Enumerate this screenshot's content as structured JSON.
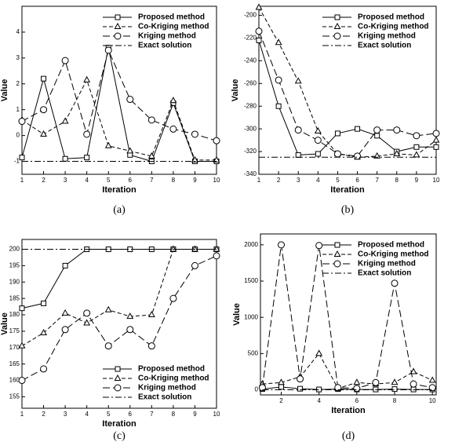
{
  "chart_data": [
    {
      "type": "line",
      "caption": "(a)",
      "x_label": "Iteration",
      "y_label": "Value",
      "legend": "upper right",
      "x": [
        1,
        2,
        3,
        4,
        5,
        6,
        7,
        8,
        9,
        10
      ],
      "xlim": [
        1,
        10
      ],
      "xticks": [
        1,
        2,
        3,
        4,
        5,
        6,
        7,
        8,
        9,
        10
      ],
      "ylim": [
        -1.5,
        5
      ],
      "yticks": [
        -1,
        0,
        1,
        2,
        3,
        4
      ],
      "series": [
        {
          "name": "Proposed method",
          "color": "#000000",
          "dash": "solid",
          "marker": "square",
          "values": [
            -0.85,
            2.2,
            -0.9,
            -0.85,
            3.4,
            -0.75,
            -1.0,
            1.25,
            -1.0,
            -1.0
          ]
        },
        {
          "name": "Co-Kriging method",
          "color": "#000000",
          "dash": "dashed",
          "marker": "triangle",
          "values": [
            0.6,
            0.05,
            0.55,
            2.15,
            -0.4,
            -0.6,
            -0.8,
            1.35,
            -0.95,
            -0.95
          ]
        },
        {
          "name": "Kriging method",
          "color": "#000000",
          "dash": "longdash",
          "marker": "circle",
          "values": [
            0.55,
            1.0,
            2.9,
            0.05,
            3.3,
            1.4,
            0.6,
            0.25,
            0.05,
            -0.2
          ]
        },
        {
          "name": "Exact solution",
          "color": "#000000",
          "dash": "dashdot",
          "marker": "none",
          "values": [
            -1,
            -1,
            -1,
            -1,
            -1,
            -1,
            -1,
            -1,
            -1,
            -1
          ]
        }
      ]
    },
    {
      "type": "line",
      "caption": "(b)",
      "x_label": "Iteration",
      "y_label": "Value",
      "legend": "upper right",
      "x": [
        1,
        2,
        3,
        4,
        5,
        6,
        7,
        8,
        9,
        10
      ],
      "xlim": [
        1,
        10
      ],
      "xticks": [
        1,
        2,
        3,
        4,
        5,
        6,
        7,
        8,
        9,
        10
      ],
      "ylim": [
        -340,
        -192
      ],
      "yticks": [
        -340,
        -320,
        -300,
        -280,
        -260,
        -240,
        -220,
        -200
      ],
      "series": [
        {
          "name": "Proposed method",
          "color": "#000000",
          "dash": "solid",
          "marker": "square",
          "values": [
            -222,
            -280,
            -323,
            -322,
            -304,
            -300,
            -306,
            -320,
            -316,
            -316
          ]
        },
        {
          "name": "Co-Kriging method",
          "color": "#000000",
          "dash": "dashed",
          "marker": "triangle",
          "values": [
            -193,
            -224,
            -258,
            -302,
            -322,
            -325,
            -324,
            -322,
            -323,
            -310
          ]
        },
        {
          "name": "Kriging method",
          "color": "#000000",
          "dash": "longdash",
          "marker": "circle",
          "values": [
            -214,
            -257,
            -301,
            -310,
            -322,
            -324,
            -301,
            -301,
            -306,
            -304
          ]
        },
        {
          "name": "Exact solution",
          "color": "#000000",
          "dash": "dashdot",
          "marker": "none",
          "values": [
            -325,
            -325,
            -325,
            -325,
            -325,
            -325,
            -325,
            -325,
            -325,
            -325
          ]
        }
      ]
    },
    {
      "type": "line",
      "caption": "(c)",
      "x_label": "Iteration",
      "y_label": "Value",
      "legend": "lower right",
      "x": [
        1,
        2,
        3,
        4,
        5,
        6,
        7,
        8,
        9,
        10
      ],
      "xlim": [
        1,
        10
      ],
      "xticks": [
        1,
        2,
        3,
        4,
        5,
        6,
        7,
        8,
        9,
        10
      ],
      "ylim": [
        151.5,
        203
      ],
      "yticks": [
        155,
        160,
        165,
        170,
        175,
        180,
        185,
        190,
        195,
        200
      ],
      "series": [
        {
          "name": "Proposed method",
          "color": "#000000",
          "dash": "solid",
          "marker": "square",
          "values": [
            182,
            183.5,
            195,
            200,
            200,
            200,
            200,
            200,
            200,
            200
          ]
        },
        {
          "name": "Co-Kriging method",
          "color": "#000000",
          "dash": "dashed",
          "marker": "triangle",
          "values": [
            170.5,
            174.5,
            180.5,
            177.5,
            181.5,
            179.5,
            180,
            200,
            200,
            200
          ]
        },
        {
          "name": "Kriging method",
          "color": "#000000",
          "dash": "longdash",
          "marker": "circle",
          "values": [
            160,
            163.5,
            175.5,
            180.5,
            170.5,
            175.5,
            170.5,
            185,
            195,
            198
          ]
        },
        {
          "name": "Exact solution",
          "color": "#000000",
          "dash": "dashdot",
          "marker": "none",
          "values": [
            200,
            200,
            200,
            200,
            200,
            200,
            200,
            200,
            200,
            200
          ]
        }
      ]
    },
    {
      "type": "line",
      "caption": "(d)",
      "x_label": "Iteration",
      "y_label": "Value",
      "legend": "upper right",
      "x": [
        1,
        2,
        3,
        4,
        5,
        6,
        7,
        8,
        9,
        10
      ],
      "xlim": [
        0.9,
        10.2
      ],
      "xticks": [
        2,
        4,
        6,
        8,
        10
      ],
      "ylim": [
        -70,
        2150
      ],
      "yticks": [
        0,
        500,
        1000,
        1500,
        2000
      ],
      "series": [
        {
          "name": "Proposed method",
          "color": "#000000",
          "dash": "solid",
          "marker": "square",
          "values": [
            10,
            40,
            15,
            5,
            10,
            5,
            5,
            10,
            5,
            5
          ]
        },
        {
          "name": "Co-Kriging method",
          "color": "#000000",
          "dash": "dashed",
          "marker": "triangle",
          "values": [
            80,
            100,
            180,
            500,
            20,
            100,
            80,
            100,
            250,
            130
          ]
        },
        {
          "name": "Kriging method",
          "color": "#000000",
          "dash": "longdash",
          "marker": "circle",
          "values": [
            30,
            2000,
            150,
            1990,
            30,
            20,
            100,
            1470,
            80,
            30
          ]
        },
        {
          "name": "Exact solution",
          "color": "#000000",
          "dash": "dashdot",
          "marker": "none",
          "values": [
            0,
            0,
            0,
            0,
            0,
            0,
            0,
            0,
            0,
            0
          ]
        }
      ]
    }
  ]
}
